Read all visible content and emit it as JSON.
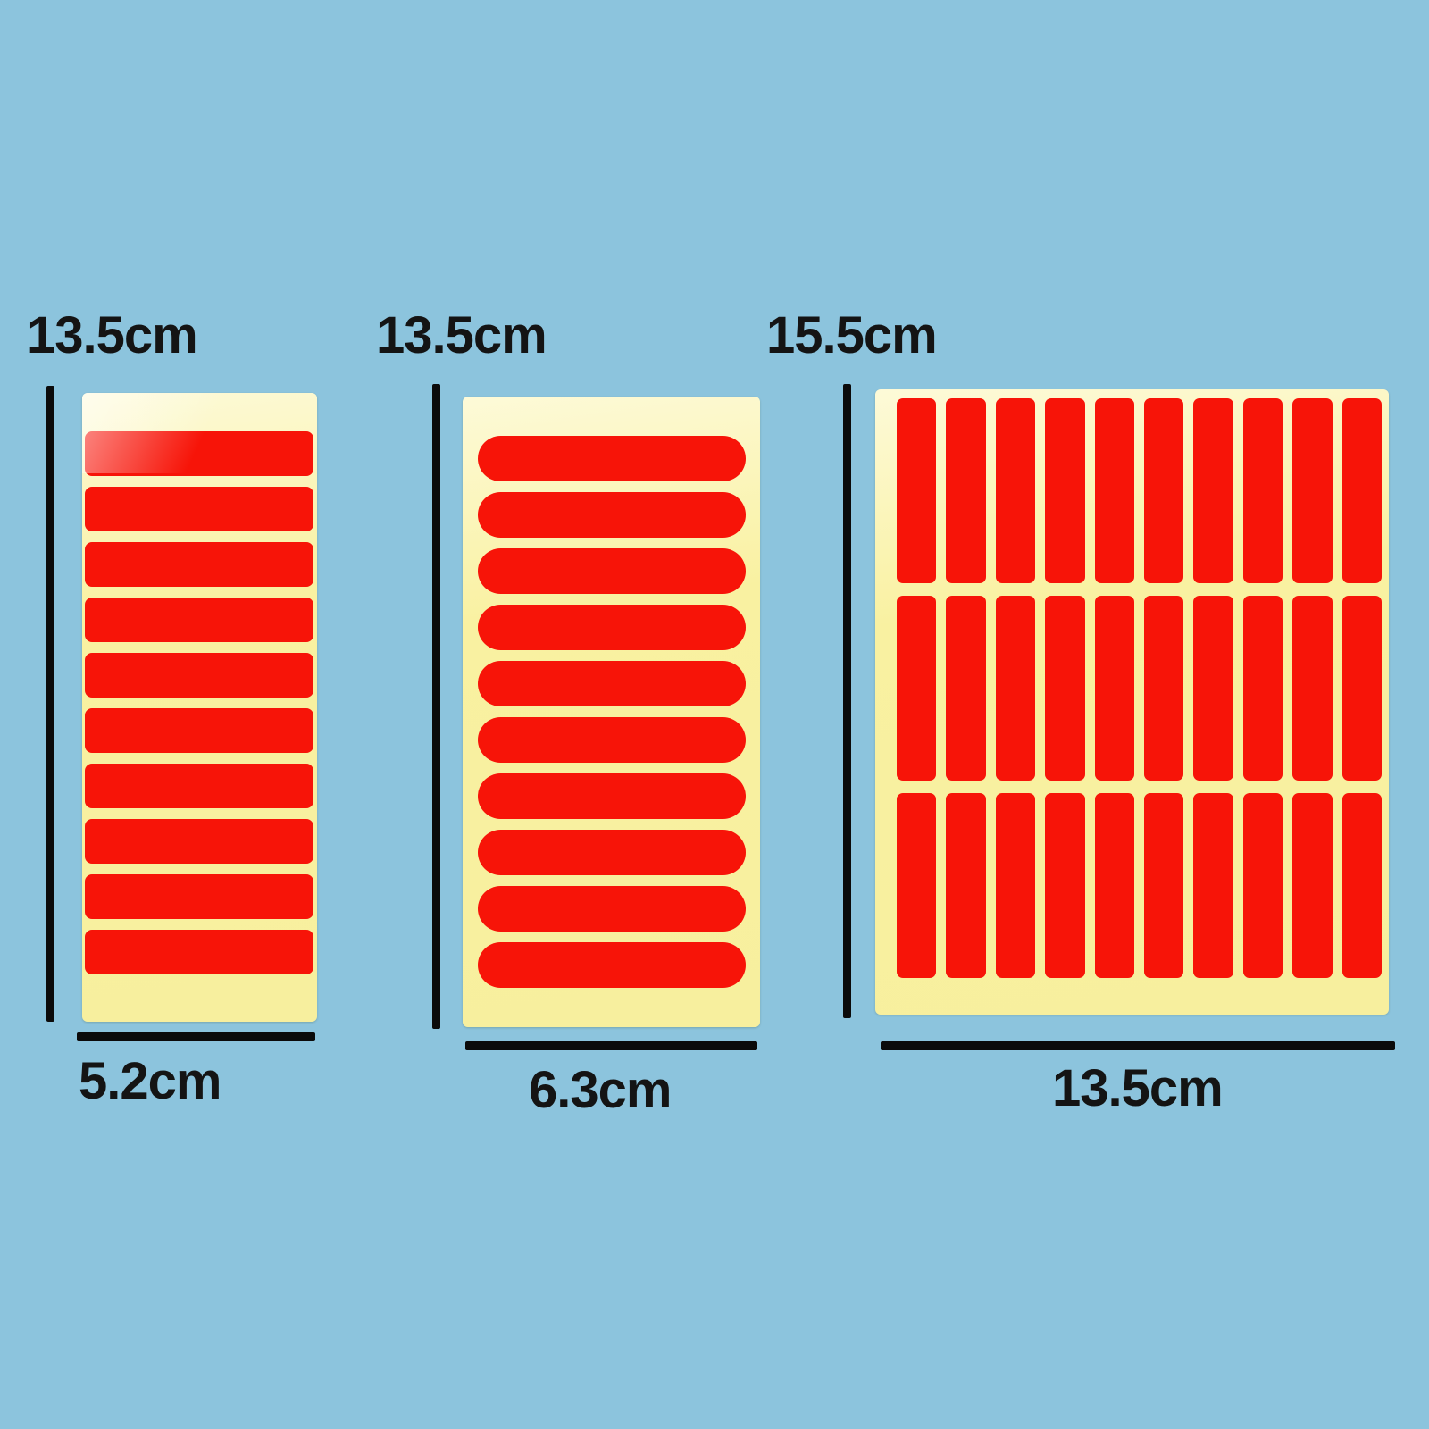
{
  "title": "Red sticker sheets size diagram",
  "colors": {
    "background": "#8cc4dd",
    "sheet": "#f9f1a1",
    "sheet_light": "#fdfad8",
    "strip": "#f71408",
    "line": "#0b0b0b",
    "text": "#141414"
  },
  "sheets": [
    {
      "id": "left",
      "height_label": "13.5cm",
      "width_label": "5.2cm",
      "strip_orientation": "horizontal",
      "strip_shape": "rounded-rect",
      "strip_count": 10
    },
    {
      "id": "middle",
      "height_label": "13.5cm",
      "width_label": "6.3cm",
      "strip_orientation": "horizontal",
      "strip_shape": "pill",
      "strip_count": 10
    },
    {
      "id": "right",
      "height_label": "15.5cm",
      "width_label": "13.5cm",
      "strip_orientation": "vertical",
      "strip_shape": "rounded-rect",
      "strip_count": 30,
      "rows": 3,
      "columns": 10
    }
  ]
}
